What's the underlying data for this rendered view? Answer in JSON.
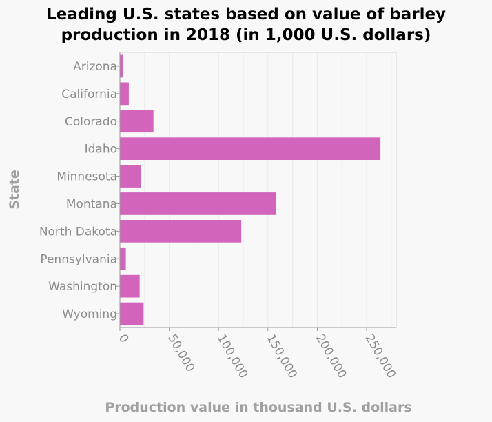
{
  "chart_data": {
    "type": "bar",
    "orientation": "horizontal",
    "title_lines": [
      "Leading U.S. states based on value of barley",
      "production in 2018 (in 1,000 U.S. dollars)"
    ],
    "xlabel": "Production value in thousand U.S. dollars",
    "ylabel": "State",
    "categories": [
      "Arizona",
      "California",
      "Colorado",
      "Idaho",
      "Minnesota",
      "Montana",
      "North Dakota",
      "Pennsylvania",
      "Washington",
      "Wyoming"
    ],
    "values": [
      3000,
      9000,
      34000,
      264000,
      21000,
      158000,
      123000,
      6000,
      20000,
      24000
    ],
    "xlim": [
      0,
      280000
    ],
    "xticks": [
      0,
      50000,
      100000,
      150000,
      200000,
      250000
    ],
    "xtick_labels": [
      "0",
      "50,000",
      "100,000",
      "150,000",
      "200,000",
      "250,000"
    ],
    "grid": true,
    "bar_color": "#d264bc"
  }
}
